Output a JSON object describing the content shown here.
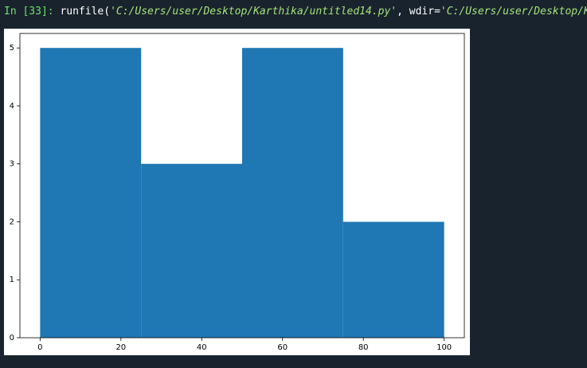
{
  "console": {
    "prompt": "In [33]:",
    "command": [
      "runfile(",
      "'C:/Users/user/Desktop/Karthika/untitled14.py'",
      ", wdir=",
      "'C:/Users/user/Desktop/Karthika'",
      ")"
    ]
  },
  "chart_data": {
    "type": "histogram",
    "bins": [
      0,
      25,
      50,
      75,
      100
    ],
    "values": [
      5,
      3,
      5,
      2
    ],
    "color": "#1f77b4",
    "xlim": [
      -5,
      105
    ],
    "ylim": [
      0,
      5.25
    ],
    "xticks": [
      0,
      20,
      40,
      60,
      80,
      100
    ],
    "yticks": [
      0,
      1,
      2,
      3,
      4,
      5
    ],
    "grid": false
  }
}
